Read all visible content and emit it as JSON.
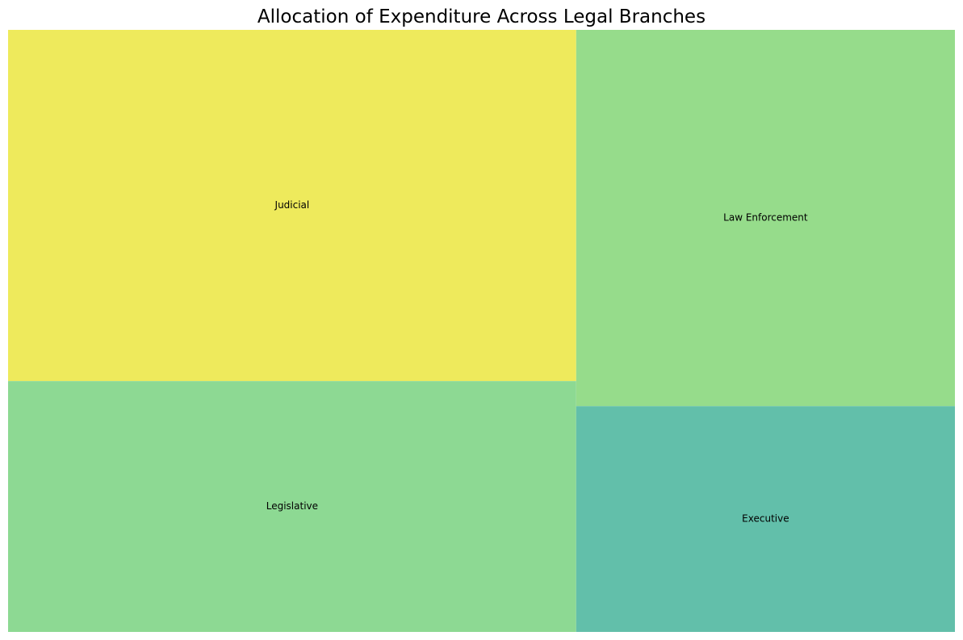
{
  "chart_data": {
    "type": "treemap",
    "title": "Allocation of Expenditure Across Legal Branches",
    "items": [
      {
        "label": "Judicial",
        "value": 35,
        "color": "#eeea5c"
      },
      {
        "label": "Legislative",
        "value": 25,
        "color": "#8dd993"
      },
      {
        "label": "Law Enforcement",
        "value": 25,
        "color": "#96dc8b"
      },
      {
        "label": "Executive",
        "value": 15,
        "color": "#62bfaa"
      }
    ]
  }
}
